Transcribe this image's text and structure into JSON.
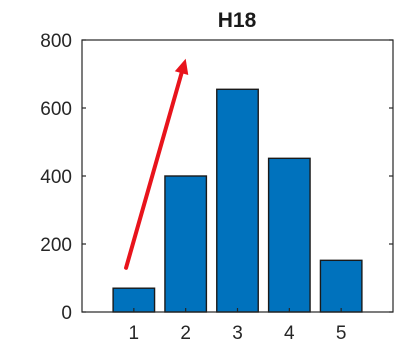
{
  "chart_data": {
    "type": "bar",
    "title": "H18",
    "xlabel": "",
    "ylabel": "",
    "categories": [
      "1",
      "2",
      "3",
      "4",
      "5"
    ],
    "values": [
      70,
      400,
      655,
      452,
      152
    ],
    "ylim": [
      0,
      800
    ],
    "yticks": [
      0,
      200,
      400,
      600,
      800
    ],
    "xlim": [
      0,
      6
    ],
    "grid": false,
    "colors": {
      "bar": "#0072BD",
      "arrow": "#E8141C",
      "axis": "#262626"
    },
    "annotations": [
      {
        "type": "arrow",
        "from": {
          "x": 0.85,
          "y": 130
        },
        "to": {
          "x": 2.0,
          "y": 745
        }
      }
    ]
  }
}
